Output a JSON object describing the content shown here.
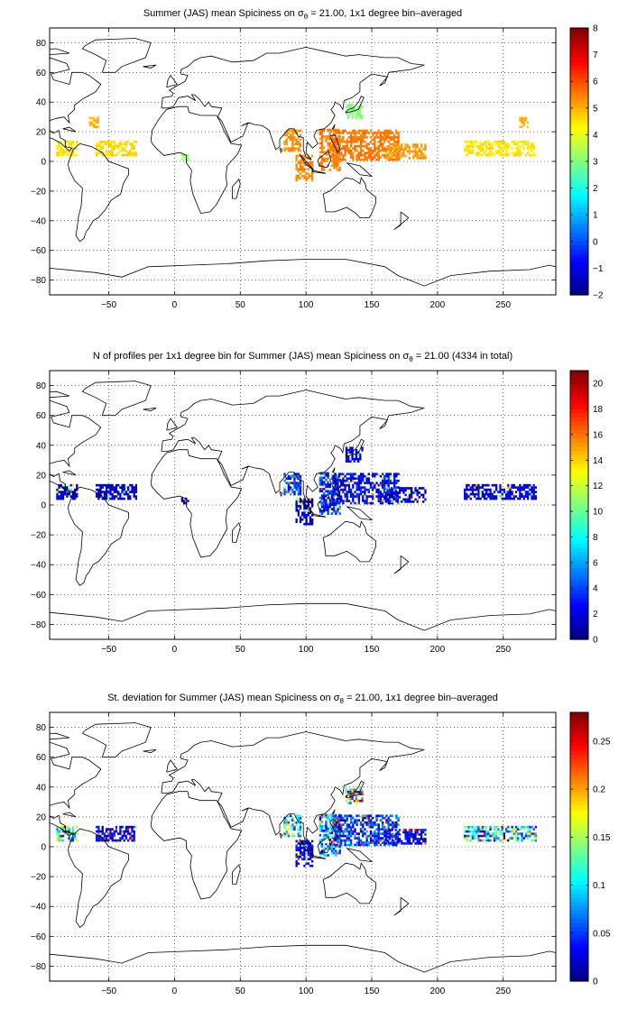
{
  "chart_data": [
    {
      "type": "heatmap",
      "title_pre": "Summer (JAS) mean Spiciness on ",
      "title_post": " = 21.00, 1x1 degree bin–averaged",
      "xlim": [
        -95,
        290
      ],
      "ylim": [
        -90,
        90
      ],
      "xticks": [
        -50,
        0,
        50,
        100,
        150,
        200,
        250
      ],
      "yticks": [
        -80,
        -60,
        -40,
        -20,
        0,
        20,
        40,
        60,
        80
      ],
      "grid": true,
      "colormap": "jet",
      "colorbar": {
        "min": -2,
        "max": 8,
        "ticks": [
          -2,
          -1,
          0,
          1,
          2,
          3,
          4,
          5,
          6,
          7,
          8
        ]
      },
      "regions": [
        {
          "lon": [
            -90,
            -75
          ],
          "lat": [
            5,
            15
          ],
          "value": 4.5
        },
        {
          "lon": [
            -65,
            -58
          ],
          "lat": [
            24,
            30
          ],
          "value": 5.0
        },
        {
          "lon": [
            -60,
            -30
          ],
          "lat": [
            5,
            14
          ],
          "value": 4.6
        },
        {
          "lon": [
            5,
            10
          ],
          "lat": [
            2,
            5
          ],
          "value": 3.2
        },
        {
          "lon": [
            83,
            95
          ],
          "lat": [
            8,
            22
          ],
          "value": 5.3
        },
        {
          "lon": [
            92,
            105
          ],
          "lat": [
            -12,
            5
          ],
          "value": 5.4
        },
        {
          "lon": [
            110,
            125
          ],
          "lat": [
            -5,
            22
          ],
          "value": 5.5
        },
        {
          "lon": [
            120,
            170
          ],
          "lat": [
            2,
            22
          ],
          "value": 5.6
        },
        {
          "lon": [
            130,
            142
          ],
          "lat": [
            30,
            40
          ],
          "value": 3.0
        },
        {
          "lon": [
            160,
            190
          ],
          "lat": [
            3,
            12
          ],
          "value": 5.2
        },
        {
          "lon": [
            220,
            275
          ],
          "lat": [
            5,
            15
          ],
          "value": 4.5
        },
        {
          "lon": [
            262,
            268
          ],
          "lat": [
            24,
            30
          ],
          "value": 5.0
        }
      ]
    },
    {
      "type": "heatmap",
      "title_pre": "N of profiles per 1x1 degree bin for Summer (JAS) mean Spiciness on ",
      "title_post": " = 21.00 (4334 in total)",
      "xlim": [
        -95,
        290
      ],
      "ylim": [
        -90,
        90
      ],
      "xticks": [
        -50,
        0,
        50,
        100,
        150,
        200,
        250
      ],
      "yticks": [
        -80,
        -60,
        -40,
        -20,
        0,
        20,
        40,
        60,
        80
      ],
      "grid": true,
      "colormap": "jet",
      "colorbar": {
        "min": 0,
        "max": 21,
        "ticks": [
          0,
          2,
          4,
          6,
          8,
          10,
          12,
          14,
          16,
          18,
          20
        ]
      },
      "regions": [
        {
          "lon": [
            -90,
            -75
          ],
          "lat": [
            5,
            15
          ],
          "value": 1.5
        },
        {
          "lon": [
            -60,
            -30
          ],
          "lat": [
            5,
            14
          ],
          "value": 1.5
        },
        {
          "lon": [
            5,
            10
          ],
          "lat": [
            2,
            5
          ],
          "value": 1.0
        },
        {
          "lon": [
            83,
            95
          ],
          "lat": [
            8,
            22
          ],
          "value": 4.0
        },
        {
          "lon": [
            92,
            105
          ],
          "lat": [
            -12,
            5
          ],
          "value": 1.5
        },
        {
          "lon": [
            110,
            125
          ],
          "lat": [
            -5,
            22
          ],
          "value": 3.5
        },
        {
          "lon": [
            120,
            170
          ],
          "lat": [
            2,
            22
          ],
          "value": 2.5
        },
        {
          "lon": [
            130,
            142
          ],
          "lat": [
            30,
            40
          ],
          "value": 2.0
        },
        {
          "lon": [
            160,
            190
          ],
          "lat": [
            3,
            12
          ],
          "value": 1.5
        },
        {
          "lon": [
            220,
            275
          ],
          "lat": [
            5,
            15
          ],
          "value": 2.0
        }
      ]
    },
    {
      "type": "heatmap",
      "title_pre": "St. deviation for Summer (JAS) mean Spiciness on ",
      "title_post": " = 21.00, 1x1 degree bin–averaged",
      "xlim": [
        -95,
        290
      ],
      "ylim": [
        -90,
        90
      ],
      "xticks": [
        -50,
        0,
        50,
        100,
        150,
        200,
        250
      ],
      "yticks": [
        -80,
        -60,
        -40,
        -20,
        0,
        20,
        40,
        60,
        80
      ],
      "grid": true,
      "colormap": "jet",
      "colorbar": {
        "min": 0,
        "max": 0.28,
        "ticks": [
          0,
          0.05,
          0.1,
          0.15,
          0.2,
          0.25
        ]
      },
      "regions": [
        {
          "lon": [
            -90,
            -75
          ],
          "lat": [
            5,
            15
          ],
          "value": 0.12
        },
        {
          "lon": [
            -60,
            -30
          ],
          "lat": [
            5,
            14
          ],
          "value": 0.03
        },
        {
          "lon": [
            83,
            95
          ],
          "lat": [
            8,
            22
          ],
          "value": 0.12
        },
        {
          "lon": [
            92,
            105
          ],
          "lat": [
            -12,
            5
          ],
          "value": 0.03
        },
        {
          "lon": [
            110,
            125
          ],
          "lat": [
            -5,
            22
          ],
          "value": 0.08
        },
        {
          "lon": [
            120,
            170
          ],
          "lat": [
            2,
            22
          ],
          "value": 0.05
        },
        {
          "lon": [
            130,
            142
          ],
          "lat": [
            30,
            40
          ],
          "value": 0.15
        },
        {
          "lon": [
            160,
            190
          ],
          "lat": [
            3,
            12
          ],
          "value": 0.03
        },
        {
          "lon": [
            220,
            275
          ],
          "lat": [
            5,
            15
          ],
          "value": 0.1
        }
      ]
    }
  ],
  "sigma_symbol": "σ",
  "sigma_subscript": "θ"
}
